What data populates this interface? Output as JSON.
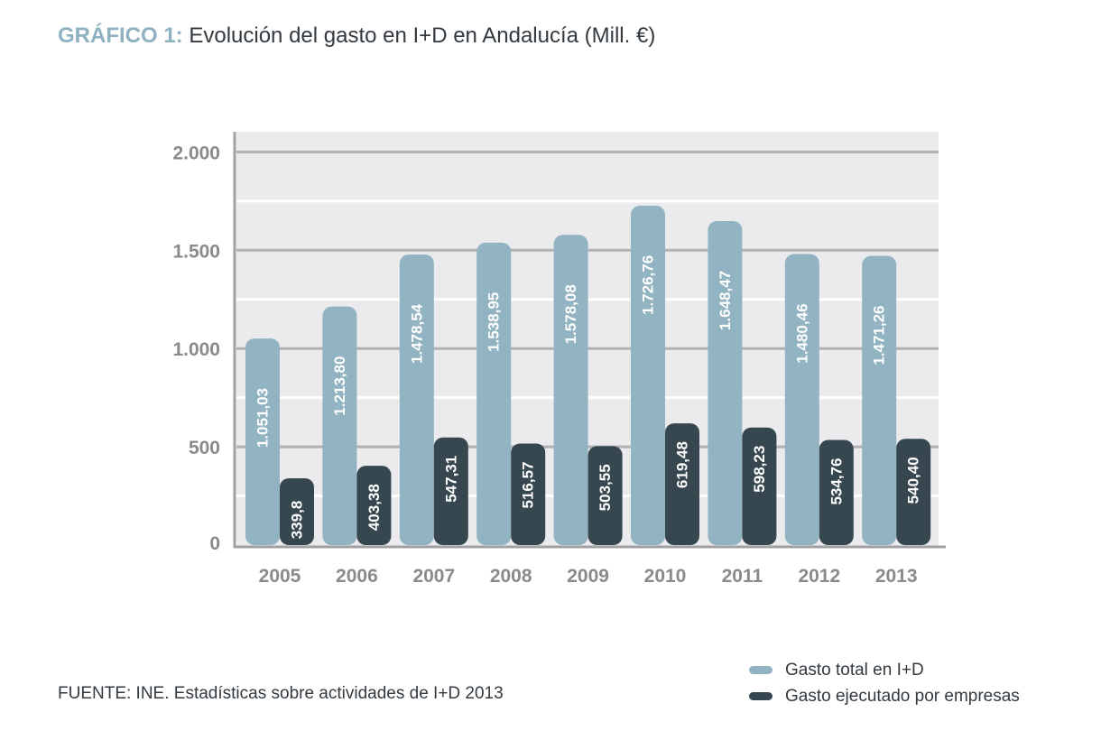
{
  "header": {
    "prefix": "GRÁFICO 1:",
    "title": "Evolución del gasto en I+D en Andalucía (Mill. €)"
  },
  "source": "FUENTE: INE. Estadísticas sobre actividades de I+D 2013",
  "colors": {
    "plot_background": "#ebebed",
    "series_total": "#92b3c1",
    "series_empresas": "#37474f",
    "axis": "#a0a0a2",
    "gridline": "#ffffff",
    "major_gridline": "#b1b1b3",
    "tick_label": "#8a8a8c",
    "title_prefix": "#8fb1c1",
    "text": "#333a40"
  },
  "chart_data": {
    "type": "bar",
    "title": "Evolución del gasto en I+D en Andalucía (Mill. €)",
    "xlabel": "",
    "ylabel": "",
    "categories": [
      "2005",
      "2006",
      "2007",
      "2008",
      "2009",
      "2010",
      "2011",
      "2012",
      "2013"
    ],
    "series": [
      {
        "name": "Gasto total en I+D",
        "values": [
          1051.03,
          1213.8,
          1478.54,
          1538.95,
          1578.08,
          1726.76,
          1648.47,
          1480.46,
          1471.26
        ],
        "labels": [
          "1.051,03",
          "1.213,80",
          "1.478,54",
          "1.538,95",
          "1.578,08",
          "1.726,76",
          "1.648,47",
          "1.480,46",
          "1.471,26"
        ]
      },
      {
        "name": "Gasto ejecutado por empresas",
        "values": [
          339.8,
          403.38,
          547.31,
          516.57,
          503.55,
          619.48,
          598.23,
          534.76,
          540.4
        ],
        "labels": [
          "339,8",
          "403,38",
          "547,31",
          "516,57",
          "503,55",
          "619,48",
          "598,23",
          "534,76",
          "540,40"
        ]
      }
    ],
    "ylim": [
      0,
      2100
    ],
    "yticks": [
      0,
      500,
      1000,
      1500,
      2000
    ],
    "ytick_labels": [
      "0",
      "500",
      "1.000",
      "1.500",
      "2.000"
    ],
    "minor_gridlines": [
      250,
      750,
      1250,
      1750
    ],
    "grid": true,
    "legend_position": "bottom-right"
  }
}
